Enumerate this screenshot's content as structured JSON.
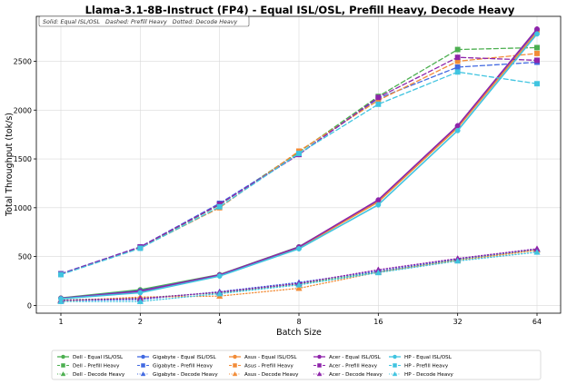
{
  "chart_data": {
    "type": "line",
    "title": "Llama-3.1-8B-Instruct (FP4) - Equal ISL/OSL, Prefill Heavy, Decode Heavy",
    "xlabel": "Batch Size",
    "ylabel": "Total Throughput (tok/s)",
    "x_scale": "log2",
    "categories": [
      "1",
      "2",
      "4",
      "8",
      "16",
      "32",
      "64"
    ],
    "x": [
      1,
      2,
      4,
      8,
      16,
      32,
      64
    ],
    "ylim": [
      -80,
      2960
    ],
    "yticks": [
      "0",
      "500",
      "1000",
      "1500",
      "2000",
      "2500"
    ],
    "ytick_values": [
      0,
      500,
      1000,
      1500,
      2000,
      2500
    ],
    "grid": true,
    "note": "Solid: Equal ISL/OSL   Dashed: Prefill Heavy   Dotted: Decode Heavy",
    "legend_position": "bottom",
    "series": [
      {
        "name": "Dell - Equal ISL/OSL",
        "color": "#4caf50",
        "style": "solid",
        "marker": "circle",
        "values": [
          75,
          160,
          315,
          600,
          1070,
          1830,
          2810
        ]
      },
      {
        "name": "Dell - Prefill Heavy",
        "color": "#4caf50",
        "style": "dashed",
        "marker": "square",
        "values": [
          320,
          595,
          1030,
          1570,
          2140,
          2620,
          2640
        ]
      },
      {
        "name": "Dell - Decode Heavy",
        "color": "#4caf50",
        "style": "dotted",
        "marker": "triangle",
        "values": [
          55,
          75,
          130,
          220,
          340,
          470,
          570
        ]
      },
      {
        "name": "Gigabyte - Equal ISL/OSL",
        "color": "#4169e1",
        "style": "solid",
        "marker": "circle",
        "values": [
          72,
          150,
          310,
          595,
          1075,
          1835,
          2820
        ]
      },
      {
        "name": "Gigabyte - Prefill Heavy",
        "color": "#4169e1",
        "style": "dashed",
        "marker": "square",
        "values": [
          325,
          600,
          1045,
          1550,
          2120,
          2440,
          2490
        ]
      },
      {
        "name": "Gigabyte - Decode Heavy",
        "color": "#4169e1",
        "style": "dotted",
        "marker": "triangle",
        "values": [
          50,
          60,
          140,
          235,
          350,
          475,
          575
        ]
      },
      {
        "name": "Asus - Equal ISL/OSL",
        "color": "#f28c38",
        "style": "solid",
        "marker": "circle",
        "values": [
          70,
          140,
          310,
          590,
          1060,
          1820,
          2800
        ]
      },
      {
        "name": "Asus - Prefill Heavy",
        "color": "#f28c38",
        "style": "dashed",
        "marker": "square",
        "values": [
          318,
          590,
          1000,
          1580,
          2100,
          2500,
          2580
        ]
      },
      {
        "name": "Asus - Decode Heavy",
        "color": "#f28c38",
        "style": "dotted",
        "marker": "triangle",
        "values": [
          45,
          85,
          95,
          175,
          340,
          460,
          565
        ]
      },
      {
        "name": "Acer - Equal ISL/OSL",
        "color": "#8e24aa",
        "style": "solid",
        "marker": "circle",
        "values": [
          73,
          145,
          312,
          598,
          1080,
          1840,
          2830
        ]
      },
      {
        "name": "Acer - Prefill Heavy",
        "color": "#8e24aa",
        "style": "dashed",
        "marker": "square",
        "values": [
          322,
          598,
          1035,
          1545,
          2130,
          2540,
          2510
        ]
      },
      {
        "name": "Acer - Decode Heavy",
        "color": "#8e24aa",
        "style": "dotted",
        "marker": "triangle",
        "values": [
          52,
          70,
          135,
          225,
          365,
          480,
          580
        ]
      },
      {
        "name": "HP - Equal ISL/OSL",
        "color": "#40c4e0",
        "style": "solid",
        "marker": "circle",
        "values": [
          68,
          130,
          300,
          580,
          1030,
          1790,
          2780
        ]
      },
      {
        "name": "HP - Prefill Heavy",
        "color": "#40c4e0",
        "style": "dashed",
        "marker": "square",
        "values": [
          315,
          585,
          1010,
          1555,
          2060,
          2390,
          2270
        ]
      },
      {
        "name": "HP - Decode Heavy",
        "color": "#40c4e0",
        "style": "dotted",
        "marker": "triangle",
        "values": [
          40,
          40,
          120,
          210,
          335,
          455,
          545
        ]
      }
    ]
  }
}
